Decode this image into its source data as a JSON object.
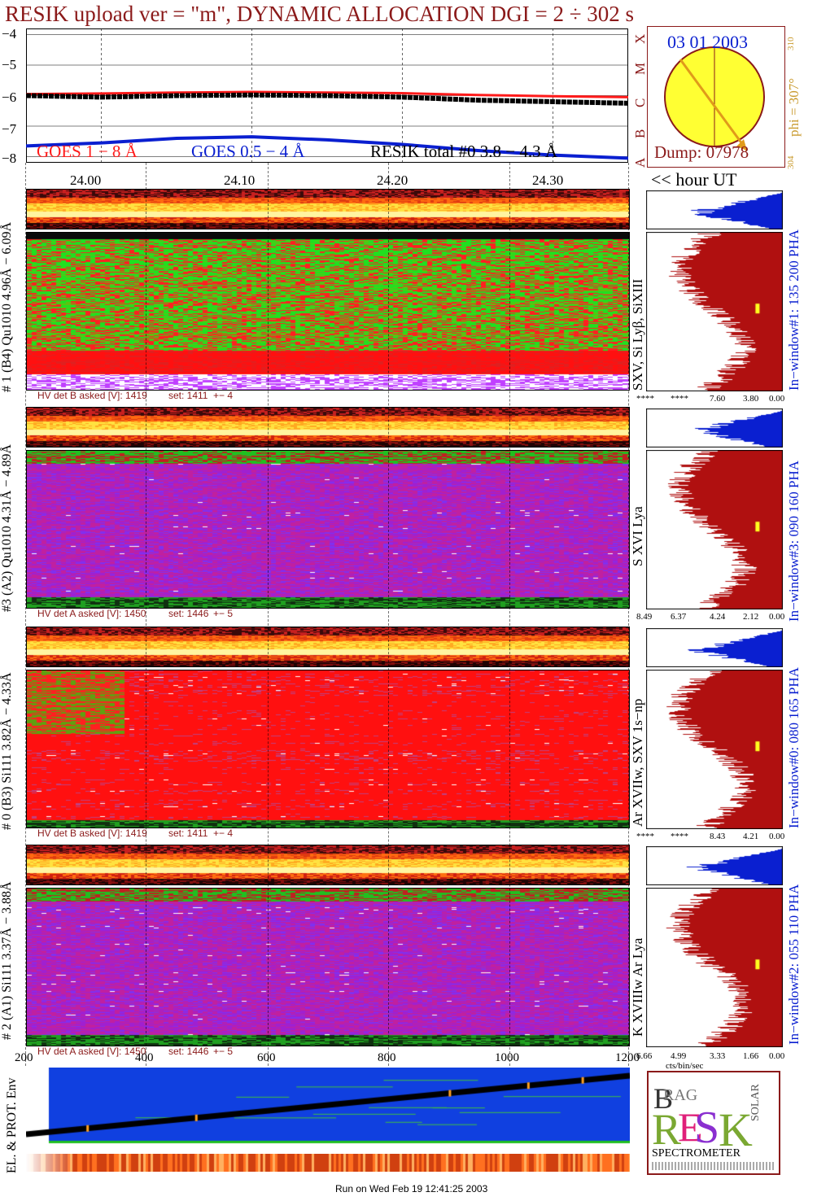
{
  "title": "RESIK upload ver = \"m\", DYNAMIC ALLOCATION  DGI =   2 ÷ 302 s",
  "colors": {
    "maroon": "#8b1a1a",
    "blue": "#0a1fd0",
    "gold": "#c99a2e",
    "goes_red": "#ff1a1a"
  },
  "goes": {
    "y_ticks": [
      "−4",
      "−5",
      "−6",
      "−7",
      "−8"
    ],
    "class_letters": [
      "X",
      "M",
      "C",
      "B",
      "A"
    ],
    "legend": {
      "goes_long": "GOES 1 − 8 Å",
      "goes_short": "GOES 0.5 − 4 Å",
      "resik_total": "RESIK total #0  3.8 − 4.3 Å"
    }
  },
  "sun": {
    "date": "03 01 2003",
    "phi": "phi = 307°",
    "phi_max": "310",
    "phi_min": "304",
    "dump": "Dump: 07978"
  },
  "time_axis": {
    "labels": [
      "24.00",
      "24.10",
      "24.20",
      "24.30"
    ],
    "unit_label": "<< hour UT"
  },
  "channels": [
    {
      "left_label": "# 1 (B4) Qu1010 4.96Å − 6.09Å",
      "lines_label": "SXV, Si Lyβ, SiXIII",
      "window_label": "In−window#1:  135 200 PHA",
      "hv": {
        "asked": "HV det B asked [V]:  1419",
        "set": "set:  1411",
        "pm": "+−    4"
      },
      "hist_ticks": [
        "****",
        "****",
        "7.60",
        "3.80",
        "0.00"
      ],
      "mode": "green"
    },
    {
      "left_label": "#3 (A2) Qu1010  4.31Å − 4.89Å",
      "lines_label": "S XVI Lya",
      "window_label": "In−window#3:  090 160 PHA",
      "hv": {
        "asked": "HV det A asked [V]:  1450",
        "set": "set:  1446",
        "pm": "+−    5"
      },
      "hist_ticks": [
        "8.49",
        "6.37",
        "4.24",
        "2.12",
        "0.00"
      ],
      "mode": "purple"
    },
    {
      "left_label": "# 0 (B3) Si111  3.82Å − 4.33Å",
      "lines_label": "Ar XVIIw,  SXV 1s−np",
      "window_label": "In−window#0:  080 165 PHA",
      "hv": {
        "asked": "HV det B asked [V]:  1419",
        "set": "set:  1411",
        "pm": "+−    4"
      },
      "hist_ticks": [
        "****",
        "****",
        "8.43",
        "4.21",
        "0.00"
      ],
      "mode": "red"
    },
    {
      "left_label": "# 2 (A1) Si111  3.37Å − 3.88Å",
      "lines_label": "K XVIIIw  Ar Lya",
      "window_label": "In−window#2:  055 110 PHA",
      "hv": {
        "asked": "HV det A asked [V]:  1450",
        "set": "set:  1446",
        "pm": "+−    5"
      },
      "hist_ticks": [
        "6.66",
        "4.99",
        "3.33",
        "1.66",
        "0.00"
      ],
      "mode": "purple"
    }
  ],
  "bottom_axis": {
    "labels": [
      "200",
      "400",
      "600",
      "800",
      "1000",
      "1200"
    ],
    "hist_unit": "cts/bin/sec"
  },
  "env_label": "EL. & PROT. Env",
  "logo": {
    "letters": "BRAGG RESIK SOLAR",
    "title": "SPECTROMETER"
  },
  "footer": "Run on Wed Feb 19 12:41:25 2003",
  "chart_data": {
    "type": "line",
    "title": "RESIK upload ver = \"m\", DYNAMIC ALLOCATION  DGI =   2 ÷ 302 s",
    "xlabel": "<< hour UT",
    "ylabel": "",
    "x": [
      23.95,
      24.0,
      24.05,
      24.1,
      24.15,
      24.2,
      24.25,
      24.3,
      24.35
    ],
    "series": [
      {
        "name": "GOES 1 − 8 Å",
        "values": [
          -5.95,
          -5.93,
          -5.9,
          -5.88,
          -5.9,
          -5.92,
          -5.98,
          -6.02,
          -6.05
        ]
      },
      {
        "name": "GOES 0.5 − 4 Å",
        "values": [
          -7.65,
          -7.55,
          -7.4,
          -7.35,
          -7.45,
          -7.6,
          -7.8,
          -7.95,
          -8.05
        ]
      },
      {
        "name": "RESIK total #0  3.8 − 4.3 Å",
        "values": [
          -6.0,
          -6.05,
          -6.0,
          -5.98,
          -6.0,
          -6.05,
          -6.15,
          -6.2,
          -6.25
        ]
      }
    ],
    "ylim": [
      -8.2,
      -3.8
    ],
    "xlim": [
      23.95,
      24.35
    ]
  }
}
